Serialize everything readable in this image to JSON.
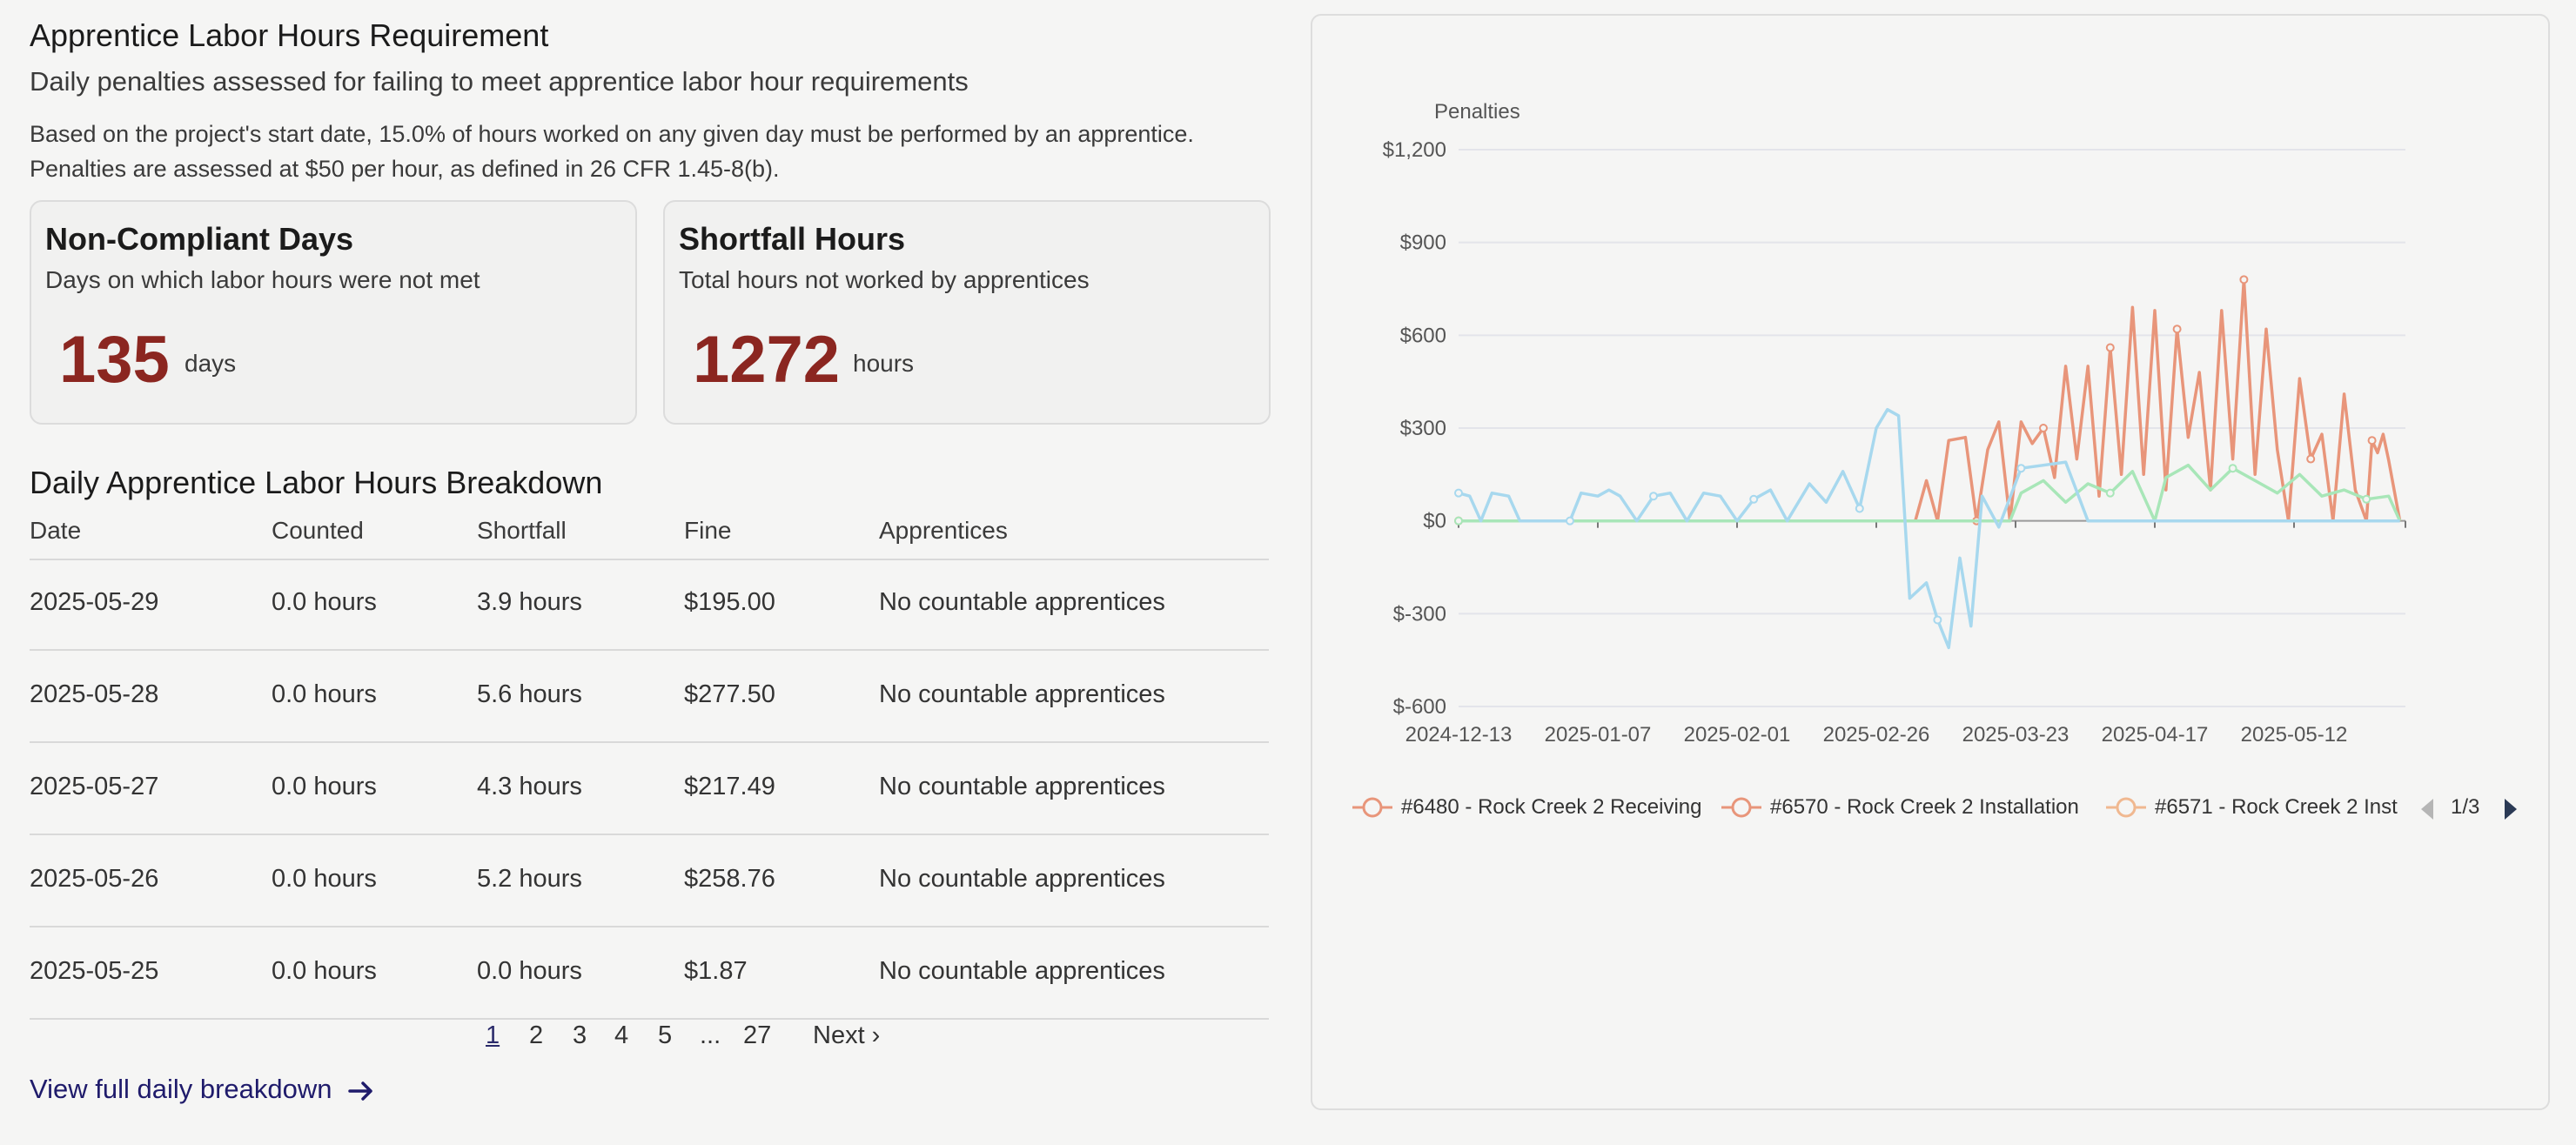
{
  "header": {
    "title": "Apprentice Labor Hours Requirement",
    "subtitle": "Daily penalties assessed for failing to meet apprentice labor hour requirements",
    "description": "Based on the project's start date, 15.0% of hours worked on any given day must be performed by an apprentice. Penalties are assessed at $50 per hour, as defined in 26 CFR 1.45-8(b)."
  },
  "cards": {
    "noncompliant": {
      "title": "Non-Compliant Days",
      "subtitle": "Days on which labor hours were not met",
      "value": "135",
      "unit": "days"
    },
    "shortfall": {
      "title": "Shortfall Hours",
      "subtitle": "Total hours not worked by apprentices",
      "value": "1272",
      "unit": "hours"
    }
  },
  "table": {
    "title": "Daily Apprentice Labor Hours Breakdown",
    "columns": [
      "Date",
      "Counted",
      "Shortfall",
      "Fine",
      "Apprentices"
    ],
    "rows": [
      [
        "2025-05-29",
        "0.0 hours",
        "3.9 hours",
        "$195.00",
        "No countable apprentices"
      ],
      [
        "2025-05-28",
        "0.0 hours",
        "5.6 hours",
        "$277.50",
        "No countable apprentices"
      ],
      [
        "2025-05-27",
        "0.0 hours",
        "4.3 hours",
        "$217.49",
        "No countable apprentices"
      ],
      [
        "2025-05-26",
        "0.0 hours",
        "5.2 hours",
        "$258.76",
        "No countable apprentices"
      ],
      [
        "2025-05-25",
        "0.0 hours",
        "0.0 hours",
        "$1.87",
        "No countable apprentices"
      ]
    ]
  },
  "pagination": {
    "pages": [
      "1",
      "2",
      "3",
      "4",
      "5",
      "...",
      "27"
    ],
    "current": "1",
    "next_label": "Next ›"
  },
  "view_link": {
    "label": "View full daily breakdown",
    "icon": "arrow-right-icon"
  },
  "chart_data": {
    "type": "line",
    "ylabel": "Penalties",
    "ylim": [
      -600,
      1200
    ],
    "yticks": [
      "$1,200",
      "$900",
      "$600",
      "$300",
      "$0",
      "$-300",
      "$-600"
    ],
    "xticks": [
      "2024-12-13",
      "2025-01-07",
      "2025-02-01",
      "2025-02-26",
      "2025-03-23",
      "2025-04-17",
      "2025-05-12"
    ],
    "x_range": [
      "2024-12-13",
      "2025-06-01"
    ],
    "grid": true,
    "legend_position": "bottom",
    "legend": {
      "items": [
        "#6480 - Rock Creek 2 Receiving",
        "#6570 - Rock Creek 2 Installation",
        "#6571 - Rock Creek 2 Inst"
      ],
      "page": "1/3",
      "prev_icon": "triangle-left-icon",
      "next_icon": "triangle-right-icon"
    },
    "series": [
      {
        "name": "#6480 - Rock Creek 2 Receiving",
        "color": "#e8957a",
        "points": [
          [
            "2024-12-13",
            0
          ],
          [
            "2025-03-05",
            0
          ],
          [
            "2025-03-07",
            130
          ],
          [
            "2025-03-09",
            0
          ],
          [
            "2025-03-11",
            260
          ],
          [
            "2025-03-14",
            270
          ],
          [
            "2025-03-16",
            0
          ],
          [
            "2025-03-18",
            230
          ],
          [
            "2025-03-20",
            320
          ],
          [
            "2025-03-22",
            0
          ],
          [
            "2025-03-24",
            320
          ],
          [
            "2025-03-26",
            250
          ],
          [
            "2025-03-28",
            300
          ],
          [
            "2025-03-30",
            140
          ],
          [
            "2025-04-01",
            500
          ],
          [
            "2025-04-03",
            200
          ],
          [
            "2025-04-05",
            500
          ],
          [
            "2025-04-07",
            80
          ],
          [
            "2025-04-09",
            560
          ],
          [
            "2025-04-11",
            150
          ],
          [
            "2025-04-13",
            690
          ],
          [
            "2025-04-15",
            150
          ],
          [
            "2025-04-17",
            680
          ],
          [
            "2025-04-19",
            100
          ],
          [
            "2025-04-21",
            620
          ],
          [
            "2025-04-23",
            270
          ],
          [
            "2025-04-25",
            480
          ],
          [
            "2025-04-27",
            100
          ],
          [
            "2025-04-29",
            680
          ],
          [
            "2025-05-01",
            200
          ],
          [
            "2025-05-03",
            780
          ],
          [
            "2025-05-05",
            150
          ],
          [
            "2025-05-07",
            620
          ],
          [
            "2025-05-09",
            230
          ],
          [
            "2025-05-11",
            0
          ],
          [
            "2025-05-13",
            460
          ],
          [
            "2025-05-15",
            200
          ],
          [
            "2025-05-17",
            280
          ],
          [
            "2025-05-19",
            0
          ],
          [
            "2025-05-21",
            410
          ],
          [
            "2025-05-23",
            100
          ],
          [
            "2025-05-25",
            0
          ],
          [
            "2025-05-26",
            260
          ],
          [
            "2025-05-27",
            220
          ],
          [
            "2025-05-28",
            280
          ],
          [
            "2025-05-29",
            195
          ],
          [
            "2025-05-31",
            0
          ]
        ]
      },
      {
        "name": "#6570 - Rock Creek 2 Installation",
        "color": "#a8e6b8",
        "points": [
          [
            "2024-12-13",
            0
          ],
          [
            "2025-03-22",
            0
          ],
          [
            "2025-03-24",
            90
          ],
          [
            "2025-03-28",
            130
          ],
          [
            "2025-04-01",
            60
          ],
          [
            "2025-04-05",
            120
          ],
          [
            "2025-04-09",
            90
          ],
          [
            "2025-04-13",
            160
          ],
          [
            "2025-04-17",
            0
          ],
          [
            "2025-04-19",
            140
          ],
          [
            "2025-04-23",
            180
          ],
          [
            "2025-04-27",
            100
          ],
          [
            "2025-05-01",
            170
          ],
          [
            "2025-05-05",
            130
          ],
          [
            "2025-05-09",
            90
          ],
          [
            "2025-05-13",
            150
          ],
          [
            "2025-05-17",
            80
          ],
          [
            "2025-05-21",
            100
          ],
          [
            "2025-05-25",
            70
          ],
          [
            "2025-05-29",
            80
          ],
          [
            "2025-05-31",
            0
          ]
        ]
      },
      {
        "name": "#6571 - Rock Creek 2 Inst",
        "color": "#a7d8ee",
        "points": [
          [
            "2024-12-13",
            90
          ],
          [
            "2024-12-15",
            80
          ],
          [
            "2024-12-17",
            0
          ],
          [
            "2024-12-19",
            90
          ],
          [
            "2024-12-22",
            80
          ],
          [
            "2024-12-24",
            0
          ],
          [
            "2025-01-02",
            0
          ],
          [
            "2025-01-04",
            90
          ],
          [
            "2025-01-07",
            80
          ],
          [
            "2025-01-09",
            100
          ],
          [
            "2025-01-11",
            80
          ],
          [
            "2025-01-14",
            0
          ],
          [
            "2025-01-17",
            80
          ],
          [
            "2025-01-20",
            90
          ],
          [
            "2025-01-23",
            0
          ],
          [
            "2025-01-26",
            90
          ],
          [
            "2025-01-29",
            80
          ],
          [
            "2025-02-01",
            0
          ],
          [
            "2025-02-04",
            70
          ],
          [
            "2025-02-07",
            100
          ],
          [
            "2025-02-10",
            0
          ],
          [
            "2025-02-14",
            120
          ],
          [
            "2025-02-17",
            60
          ],
          [
            "2025-02-20",
            160
          ],
          [
            "2025-02-23",
            40
          ],
          [
            "2025-02-26",
            300
          ],
          [
            "2025-02-28",
            360
          ],
          [
            "2025-03-02",
            340
          ],
          [
            "2025-03-04",
            -250
          ],
          [
            "2025-03-07",
            -200
          ],
          [
            "2025-03-09",
            -320
          ],
          [
            "2025-03-11",
            -410
          ],
          [
            "2025-03-13",
            -120
          ],
          [
            "2025-03-15",
            -340
          ],
          [
            "2025-03-17",
            80
          ],
          [
            "2025-03-20",
            -20
          ],
          [
            "2025-03-24",
            170
          ],
          [
            "2025-03-28",
            180
          ],
          [
            "2025-04-01",
            190
          ],
          [
            "2025-04-05",
            0
          ],
          [
            "2025-04-09",
            0
          ],
          [
            "2025-05-31",
            0
          ]
        ]
      }
    ]
  }
}
